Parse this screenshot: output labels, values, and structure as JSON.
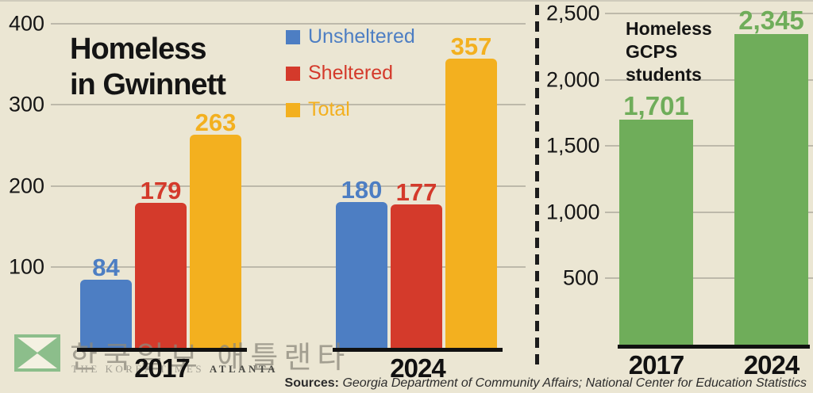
{
  "colors": {
    "background": "#EBE6D3",
    "unsheltered_blue": "#4D7EC3",
    "sheltered_red": "#D43A2B",
    "total_yellow": "#F3B01F",
    "students_green": "#6FAD5A",
    "gridline": "#bdb9aa",
    "text_black": "#161616",
    "watermark_green": "#8CBE8B"
  },
  "chart_data": [
    {
      "type": "bar",
      "title": "Homeless in Gwinnett",
      "categories": [
        "2017",
        "2024"
      ],
      "series": [
        {
          "name": "Unsheltered",
          "color": "#4D7EC3",
          "values": [
            84,
            180
          ],
          "labels": [
            "84",
            "180"
          ]
        },
        {
          "name": "Sheltered",
          "color": "#D43A2B",
          "values": [
            179,
            177
          ],
          "labels": [
            "179",
            "177"
          ]
        },
        {
          "name": "Total",
          "color": "#F3B01F",
          "values": [
            263,
            357
          ],
          "labels": [
            "263",
            "357"
          ]
        }
      ],
      "ylim": [
        0,
        400
      ],
      "yticks": [
        100,
        200,
        300,
        400
      ],
      "ytick_labels": [
        "100",
        "200",
        "300",
        "400"
      ],
      "grid": true,
      "legend_position": "top-right"
    },
    {
      "type": "bar",
      "title": "Homeless GCPS students",
      "title_lines": [
        "Homeless",
        "GCPS",
        "students"
      ],
      "categories": [
        "2017",
        "2024"
      ],
      "series": [
        {
          "name": "Homeless GCPS students",
          "color": "#6FAD5A",
          "values": [
            1701,
            2345
          ],
          "labels": [
            "1,701",
            "2,345"
          ]
        }
      ],
      "ylim": [
        0,
        2500
      ],
      "yticks": [
        500,
        1000,
        1500,
        2000,
        2500
      ],
      "ytick_labels": [
        "500",
        "1,000",
        "1,500",
        "2,000",
        "2,500"
      ],
      "grid": true,
      "legend_position": "none"
    }
  ],
  "left_chart": {
    "title_line1": "Homeless",
    "title_line2": "in Gwinnett"
  },
  "right_chart": {
    "title_line1": "Homeless",
    "title_line2": "GCPS",
    "title_line3": "students"
  },
  "sources": {
    "prefix": "Sources:",
    "text": " Georgia Department of Community Affairs; National Center for Education Statistics"
  },
  "watermark": {
    "korean": "한국일보 애틀랜타",
    "english": "THE KOREA TIMES ",
    "city": "ATLANTA"
  }
}
